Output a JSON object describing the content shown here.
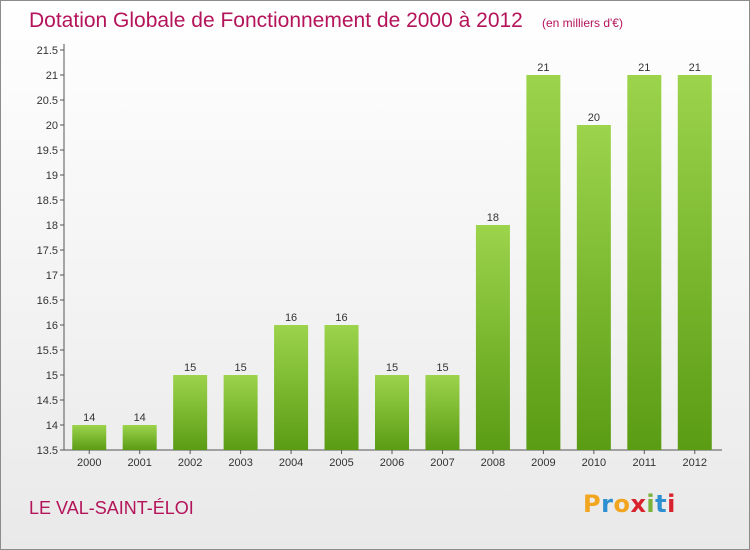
{
  "chart_data": {
    "type": "bar",
    "title": "Dotation Globale de Fonctionnement de 2000 à 2012",
    "subtitle": "(en milliers d'€)",
    "categories": [
      "2000",
      "2001",
      "2002",
      "2003",
      "2004",
      "2005",
      "2006",
      "2007",
      "2008",
      "2009",
      "2010",
      "2011",
      "2012"
    ],
    "values": [
      14,
      14,
      15,
      15,
      16,
      16,
      15,
      15,
      18,
      21,
      20,
      21,
      21
    ],
    "ylim": [
      13.5,
      21.5
    ],
    "yticks": [
      "13.5",
      "14",
      "14.5",
      "15",
      "15.5",
      "16",
      "16.5",
      "17",
      "17.5",
      "18",
      "18.5",
      "19",
      "19.5",
      "20",
      "20.5",
      "21",
      "21.5"
    ],
    "grid": false,
    "bar_color_top": "#9cd44c",
    "bar_color_bottom": "#5a9c14"
  },
  "commune": "LE VAL-SAINT-ÉLOI",
  "logo": {
    "letters": [
      "P",
      "r",
      "o",
      "x",
      "i",
      "t",
      "i"
    ],
    "colors": [
      "#f2a51e",
      "#2d8fcf",
      "#f2a51e",
      "#d8222e",
      "#7bb33a",
      "#2d8fcf",
      "#d8222e"
    ]
  }
}
